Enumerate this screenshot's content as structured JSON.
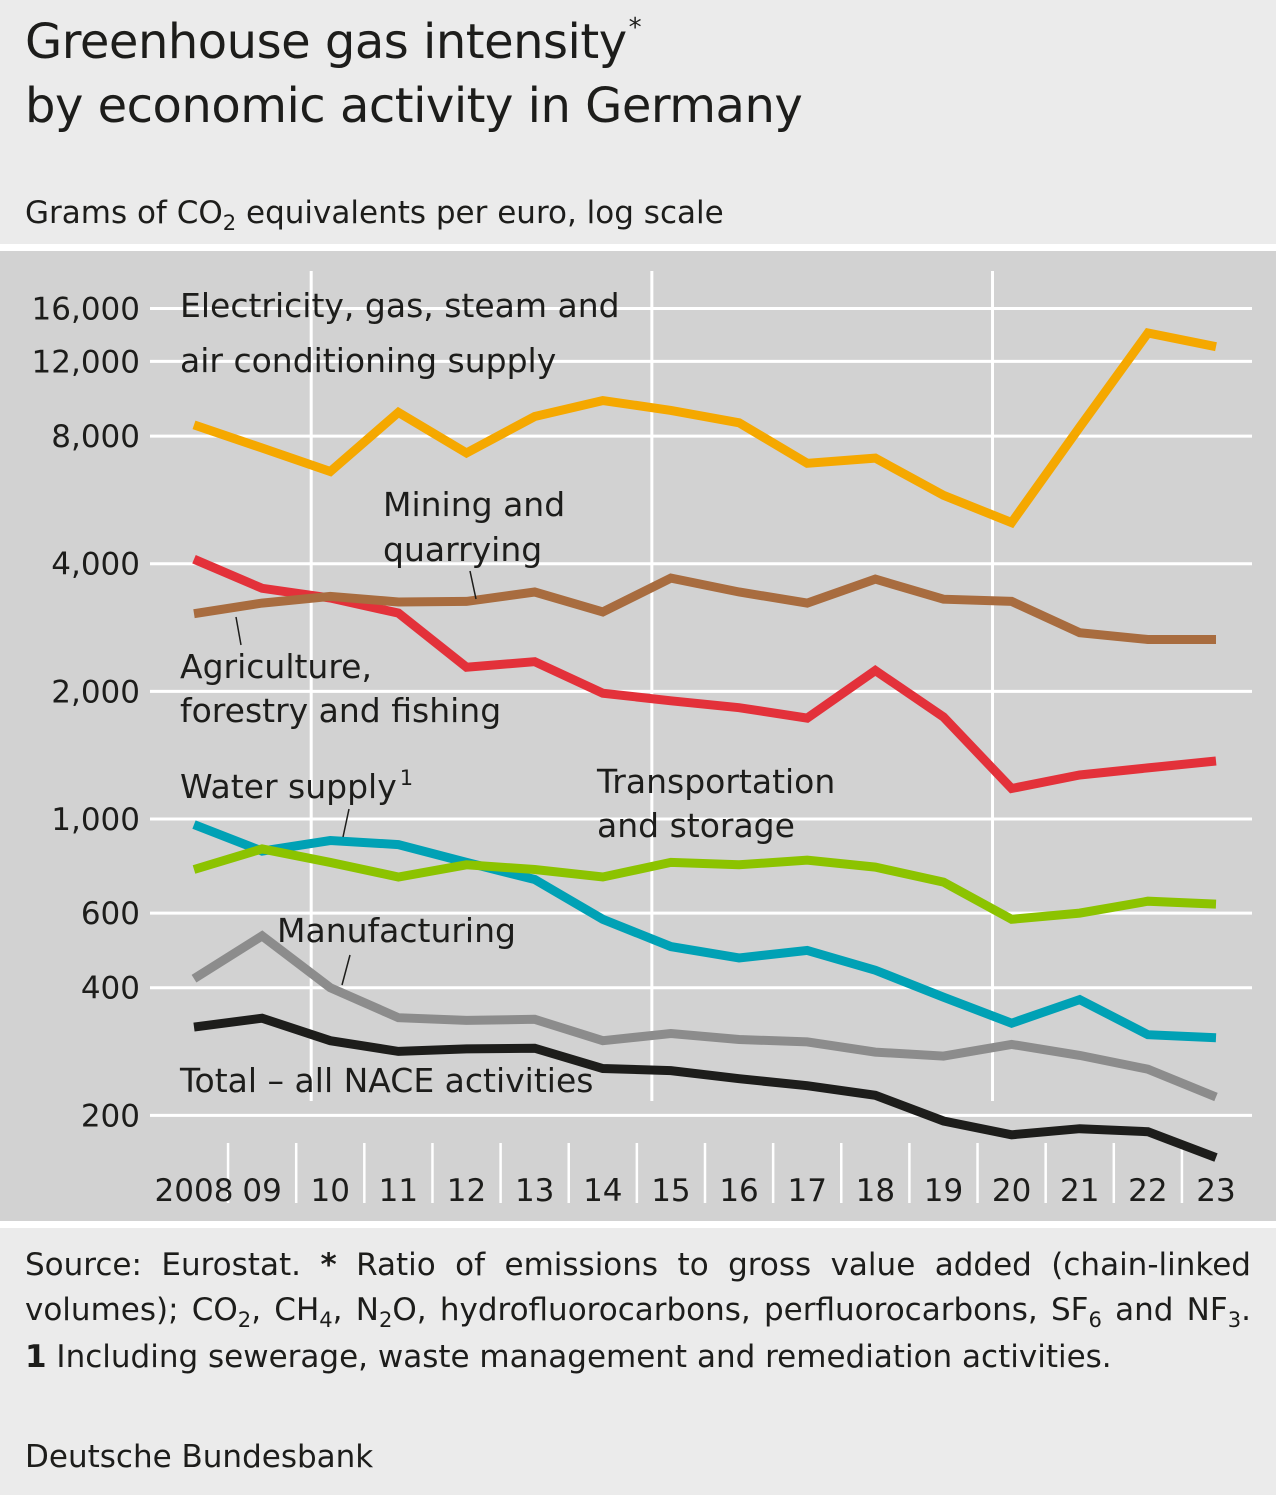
{
  "title": {
    "line1": "Greenhouse gas intensity",
    "marker": "*",
    "line2": "by economic activity in Germany"
  },
  "subtitle": {
    "before": "Grams of CO",
    "sub": "2",
    "after": " equivalents per euro, log scale"
  },
  "chart_data": {
    "type": "line",
    "title": "Greenhouse gas intensity* by economic activity in Germany",
    "ylabel": "Grams of CO2 equivalents per euro, log scale",
    "y_scale": "log",
    "ylim": [
      190,
      19000
    ],
    "y_ticks": [
      16000,
      12000,
      8000,
      4000,
      2000,
      1000,
      600,
      400,
      200
    ],
    "y_tick_labels": [
      "16,000",
      "12,000",
      "8,000",
      "4,000",
      "2,000",
      "1,000",
      "600",
      "400",
      "200"
    ],
    "x": [
      2008,
      2009,
      2010,
      2011,
      2012,
      2013,
      2014,
      2015,
      2016,
      2017,
      2018,
      2019,
      2020,
      2021,
      2022,
      2023
    ],
    "x_tick_labels": [
      "2008",
      "09",
      "10",
      "11",
      "12",
      "13",
      "14",
      "15",
      "16",
      "17",
      "18",
      "19",
      "20",
      "21",
      "22",
      "23"
    ],
    "grid": true,
    "legend": "none (inline labels)",
    "series": [
      {
        "name": "Electricity, gas, steam and air conditioning supply",
        "color": "#f5a800",
        "values": [
          8500,
          7500,
          6600,
          9100,
          7300,
          8900,
          9700,
          9200,
          8600,
          6900,
          7100,
          5800,
          5000,
          8400,
          14000,
          13000
        ]
      },
      {
        "name": "Mining and quarrying",
        "color": "#a86c3f",
        "values": [
          3050,
          3230,
          3350,
          3250,
          3260,
          3430,
          3080,
          3700,
          3430,
          3230,
          3680,
          3300,
          3260,
          2750,
          2650,
          2650
        ]
      },
      {
        "name": "Agriculture, forestry and fishing",
        "color": "#e3313a",
        "values": [
          4100,
          3500,
          3320,
          3060,
          2280,
          2350,
          1980,
          1900,
          1830,
          1730,
          2240,
          1740,
          1180,
          1270,
          1320,
          1370
        ]
      },
      {
        "name": "Water supply",
        "marker": "1",
        "color": "#00a1b5",
        "values": [
          970,
          840,
          890,
          870,
          790,
          720,
          580,
          500,
          470,
          490,
          440,
          380,
          330,
          375,
          310,
          305
        ]
      },
      {
        "name": "Transportation and storage",
        "color": "#8cc300",
        "values": [
          760,
          850,
          790,
          730,
          780,
          760,
          730,
          790,
          780,
          800,
          770,
          710,
          580,
          600,
          640,
          630
        ]
      },
      {
        "name": "Manufacturing",
        "color": "#8c8c8c",
        "values": [
          420,
          530,
          400,
          340,
          335,
          337,
          300,
          312,
          302,
          298,
          282,
          276,
          294,
          277,
          257,
          221
        ]
      },
      {
        "name": "Total – all NACE activities",
        "color": "#1d1d1b",
        "values": [
          323,
          339,
          300,
          283,
          287,
          288,
          258,
          255,
          244,
          235,
          223,
          194,
          180,
          186,
          183,
          159
        ]
      }
    ]
  },
  "labels": {
    "electricity_1": "Electricity, gas, steam and",
    "electricity_2": "air conditioning supply",
    "mining_1": "Mining and",
    "mining_2": "quarrying",
    "agri_1": "Agriculture,",
    "agri_2": "forestry and fishing",
    "water": "Water supply",
    "water_marker": "1",
    "transport_1": "Transportation",
    "transport_2": "and storage",
    "manufacturing": "Manufacturing",
    "total": "Total – all NACE activities"
  },
  "footer": {
    "source": "Source: Eurostat.",
    "star": "*",
    "star_note_a": " Ratio of emissions to gross value added (chain-linked volumes); CO",
    "co2_sub": "2",
    "sep1": ", CH",
    "ch4_sub": "4",
    "sep2": ", N",
    "n2o_sub": "2",
    "sep3": "O, hydrofluorocarbons, perfluorocarbons, SF",
    "sf6_sub": "6",
    "sep4": " and NF",
    "nf3_sub": "3",
    "sep5": ". ",
    "one": "1",
    "one_note": " Including sewerage, waste management and remediation activities.",
    "credit": "Deutsche Bundesbank"
  }
}
